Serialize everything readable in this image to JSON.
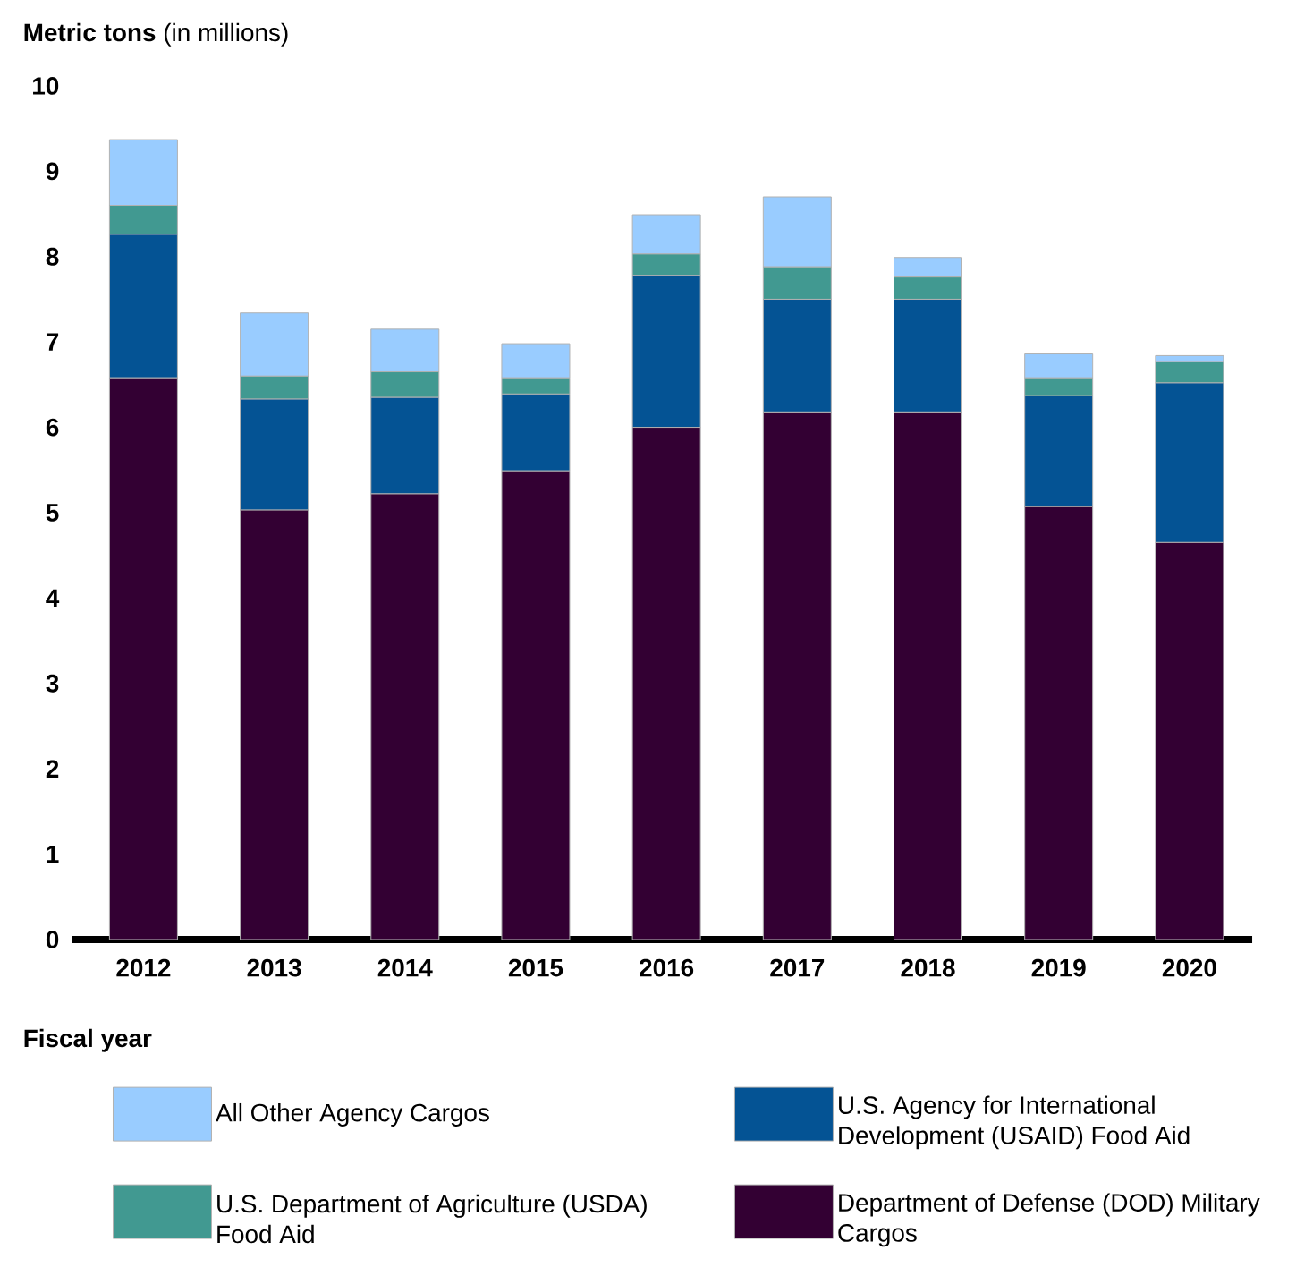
{
  "chart_data": {
    "type": "bar",
    "stacked": true,
    "ylabel": "**Metric tons** (in millions)",
    "xlabel": "Fiscal year",
    "categories": [
      "2012",
      "2013",
      "2014",
      "2015",
      "2016",
      "2017",
      "2018",
      "2019",
      "2020"
    ],
    "series": [
      {
        "name": "Department of Defense (DOD) Military Cargos",
        "color": "#330033",
        "values": [
          6.58,
          5.03,
          5.22,
          5.49,
          6.0,
          6.18,
          6.18,
          5.07,
          4.65
        ]
      },
      {
        "name": "U.S. Agency for International Development (USAID) Food Aid",
        "color": "#045394",
        "values": [
          1.68,
          1.3,
          1.13,
          0.9,
          1.78,
          1.32,
          1.32,
          1.3,
          1.87
        ]
      },
      {
        "name": "U.S. Department of Agriculture (USDA) Food Aid",
        "color": "#419991",
        "values": [
          0.34,
          0.27,
          0.3,
          0.19,
          0.25,
          0.38,
          0.26,
          0.21,
          0.25
        ]
      },
      {
        "name": "All Other Agency Cargos",
        "color": "#99ccff",
        "values": [
          0.77,
          0.74,
          0.5,
          0.4,
          0.46,
          0.82,
          0.23,
          0.28,
          0.07
        ]
      }
    ],
    "ylim": [
      0,
      10
    ],
    "yticks": [
      0,
      1,
      2,
      3,
      4,
      5,
      6,
      7,
      8,
      9,
      10
    ],
    "legend": "bottom"
  }
}
